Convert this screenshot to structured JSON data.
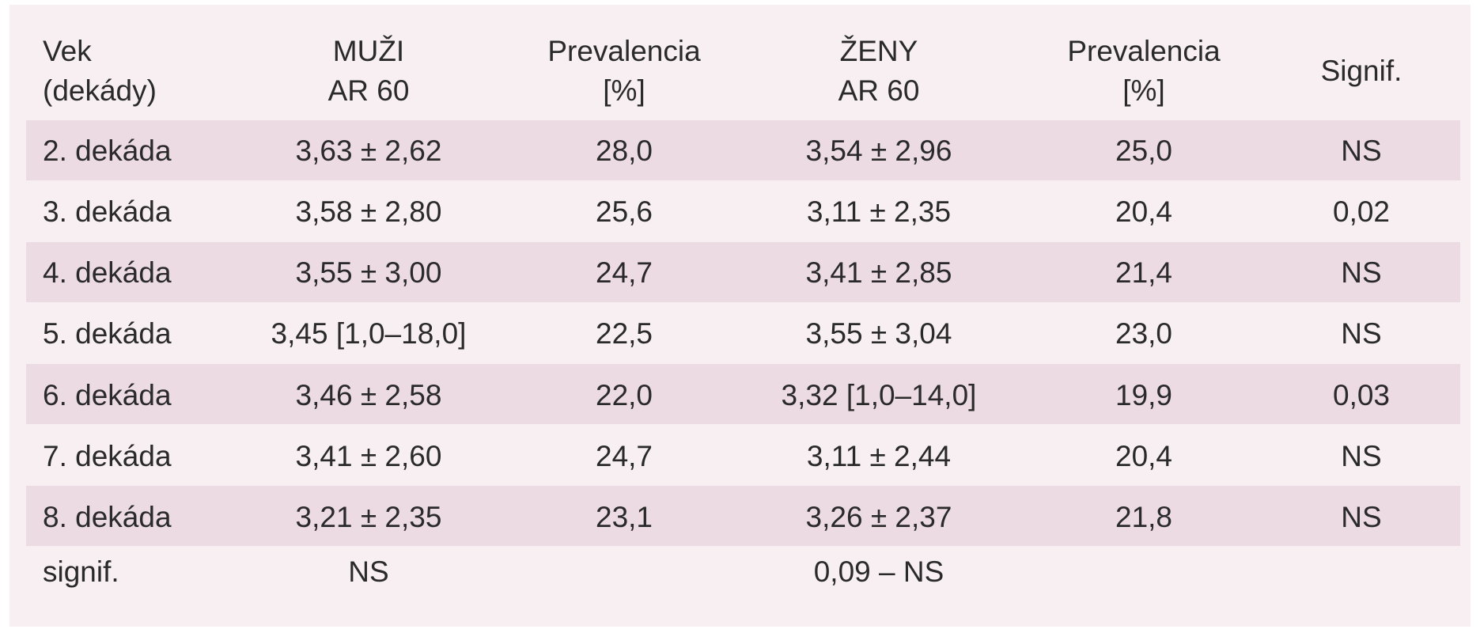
{
  "table": {
    "header": [
      "Vek\n(dekády)",
      "MUŽI\nAR 60",
      "Prevalencia\n[%]",
      "ŽENY\nAR 60",
      "Prevalencia\n[%]",
      "Signif."
    ],
    "rows": [
      [
        "2. dekáda",
        "3,63 ± 2,62",
        "28,0",
        "3,54 ± 2,96",
        "25,0",
        "NS"
      ],
      [
        "3. dekáda",
        "3,58 ± 2,80",
        "25,6",
        "3,11 ± 2,35",
        "20,4",
        "0,02"
      ],
      [
        "4. dekáda",
        "3,55 ± 3,00",
        "24,7",
        "3,41 ± 2,85",
        "21,4",
        "NS"
      ],
      [
        "5. dekáda",
        "3,45 [1,0–18,0]",
        "22,5",
        "3,55 ± 3,04",
        "23,0",
        "NS"
      ],
      [
        "6. dekáda",
        "3,46 ± 2,58",
        "22,0",
        "3,32 [1,0–14,0]",
        "19,9",
        "0,03"
      ],
      [
        "7. dekáda",
        "3,41 ± 2,60",
        "24,7",
        "3,11 ± 2,44",
        "20,4",
        "NS"
      ],
      [
        "8. dekáda",
        "3,21 ± 2,35",
        "23,1",
        "3,26 ± 2,37",
        "21,8",
        "NS"
      ]
    ],
    "footer": {
      "label": "signif.",
      "men": "NS",
      "women": "0,09 – NS"
    }
  }
}
